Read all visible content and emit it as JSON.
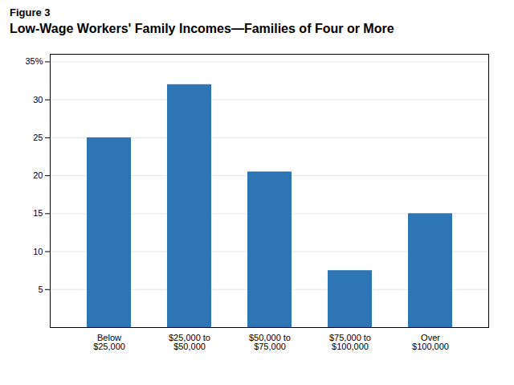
{
  "chart_data": {
    "type": "bar",
    "title": "Low-Wage Workers' Family Incomes—Families of Four or More",
    "annotations": [
      "Figure 3"
    ],
    "categories": [
      "Below\n$25,000",
      "$25,000 to\n$50,000",
      "$50,000 to\n$75,000",
      "$75,000 to\n$100,000",
      "Over\n$100,000"
    ],
    "values": [
      25,
      32,
      20.5,
      7.5,
      15
    ],
    "color": "#2E75B6",
    "ylim": [
      0,
      36
    ],
    "yticks": [
      5,
      10,
      15,
      20,
      25,
      30,
      {
        "value": 35,
        "label": "35%"
      }
    ],
    "grid": true
  }
}
